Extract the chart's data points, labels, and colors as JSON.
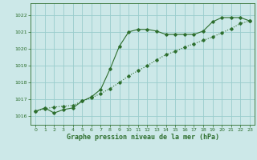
{
  "title": "Graphe pression niveau de la mer (hPa)",
  "bg_color": "#cce8e8",
  "grid_color": "#99cccc",
  "line_color": "#2d6e2d",
  "xlim": [
    -0.5,
    23.5
  ],
  "ylim": [
    1015.5,
    1022.7
  ],
  "yticks": [
    1016,
    1017,
    1018,
    1019,
    1020,
    1021,
    1022
  ],
  "xticks": [
    0,
    1,
    2,
    3,
    4,
    5,
    6,
    7,
    8,
    9,
    10,
    11,
    12,
    13,
    14,
    15,
    16,
    17,
    18,
    19,
    20,
    21,
    22,
    23
  ],
  "line1_x": [
    0,
    1,
    2,
    3,
    4,
    5,
    6,
    7,
    8,
    9,
    10,
    11,
    12,
    13,
    14,
    15,
    16,
    17,
    18,
    19,
    20,
    21,
    22,
    23
  ],
  "line1_y": [
    1016.3,
    1016.5,
    1016.2,
    1016.4,
    1016.5,
    1016.9,
    1017.15,
    1017.6,
    1018.8,
    1020.15,
    1021.0,
    1021.15,
    1021.15,
    1021.05,
    1020.85,
    1020.85,
    1020.85,
    1020.85,
    1021.05,
    1021.6,
    1021.85,
    1021.85,
    1021.85,
    1021.65
  ],
  "line2_x": [
    0,
    1,
    2,
    3,
    4,
    5,
    6,
    7,
    8,
    9,
    10,
    11,
    12,
    13,
    14,
    15,
    16,
    17,
    18,
    19,
    20,
    21,
    22,
    23
  ],
  "line2_y": [
    1016.3,
    1016.45,
    1016.55,
    1016.6,
    1016.65,
    1016.9,
    1017.1,
    1017.35,
    1017.65,
    1018.0,
    1018.4,
    1018.7,
    1019.0,
    1019.35,
    1019.65,
    1019.85,
    1020.1,
    1020.3,
    1020.5,
    1020.7,
    1020.95,
    1021.2,
    1021.5,
    1021.65
  ]
}
